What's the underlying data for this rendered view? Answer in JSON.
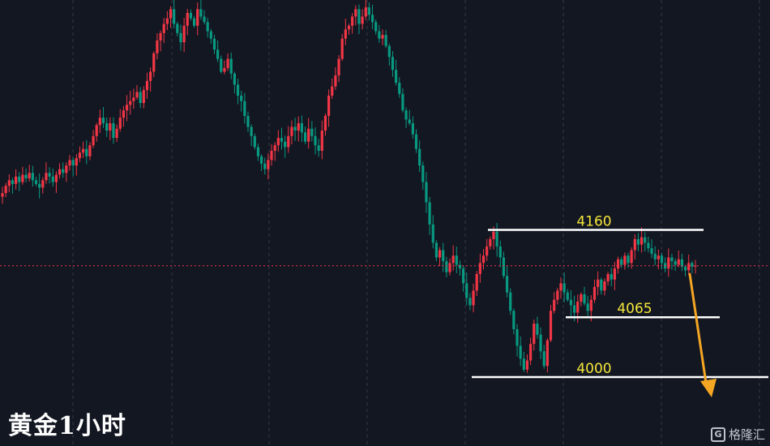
{
  "chart_data": {
    "type": "candlestick",
    "title": "黄金1小时",
    "price_range": [
      3925,
      4410
    ],
    "levels": [
      {
        "value": 4160,
        "label": "4160"
      },
      {
        "value": 4065,
        "label": "4065"
      },
      {
        "value": 4000,
        "label": "4000"
      }
    ],
    "current_price": 4121,
    "projection": "down",
    "colors": {
      "up": "#f23645",
      "down": "#089981",
      "level": "#ffffff",
      "label": "#f5e63a",
      "arrow": "#f5a623",
      "grid": "#363a45",
      "price_line": "#f23645"
    },
    "grid": true,
    "closes": [
      4200,
      4208,
      4214,
      4210,
      4218,
      4212,
      4220,
      4216,
      4222,
      4214,
      4210,
      4206,
      4214,
      4222,
      4218,
      4212,
      4220,
      4226,
      4222,
      4230,
      4236,
      4230,
      4238,
      4244,
      4248,
      4240,
      4252,
      4262,
      4274,
      4282,
      4276,
      4268,
      4276,
      4260,
      4270,
      4282,
      4290,
      4296,
      4300,
      4304,
      4310,
      4298,
      4312,
      4322,
      4332,
      4352,
      4366,
      4374,
      4384,
      4390,
      4400,
      4384,
      4374,
      4364,
      4382,
      4396,
      4390,
      4382,
      4400,
      4392,
      4386,
      4376,
      4368,
      4356,
      4346,
      4332,
      4336,
      4346,
      4330,
      4318,
      4306,
      4300,
      4284,
      4272,
      4262,
      4250,
      4240,
      4232,
      4226,
      4236,
      4246,
      4252,
      4260,
      4256,
      4250,
      4262,
      4272,
      4268,
      4276,
      4266,
      4256,
      4270,
      4262,
      4252,
      4246,
      4268,
      4284,
      4306,
      4316,
      4328,
      4346,
      4368,
      4378,
      4382,
      4392,
      4400,
      4384,
      4392,
      4402,
      4394,
      4386,
      4376,
      4368,
      4372,
      4360,
      4348,
      4334,
      4320,
      4308,
      4290,
      4280,
      4276,
      4264,
      4248,
      4230,
      4212,
      4190,
      4166,
      4146,
      4130,
      4138,
      4126,
      4114,
      4124,
      4132,
      4122,
      4118,
      4102,
      4086,
      4078,
      4094,
      4112,
      4124,
      4132,
      4142,
      4150,
      4158,
      4142,
      4130,
      4110,
      4092,
      4072,
      4052,
      4034,
      4020,
      4008,
      4018,
      4036,
      4058,
      4046,
      4028,
      4012,
      4040,
      4072,
      4084,
      4094,
      4102,
      4092,
      4084,
      4078,
      4070,
      4082,
      4090,
      4080,
      4072,
      4084,
      4098,
      4106,
      4094,
      4104,
      4112,
      4106,
      4118,
      4128,
      4122,
      4132,
      4124,
      4138,
      4150,
      4144,
      4152,
      4146,
      4140,
      4134,
      4128,
      4132,
      4124,
      4118,
      4130,
      4126,
      4122,
      4128,
      4120,
      4116,
      4124,
      4120,
      4121
    ]
  },
  "watermark": {
    "text": "格隆汇",
    "badge": "G"
  }
}
